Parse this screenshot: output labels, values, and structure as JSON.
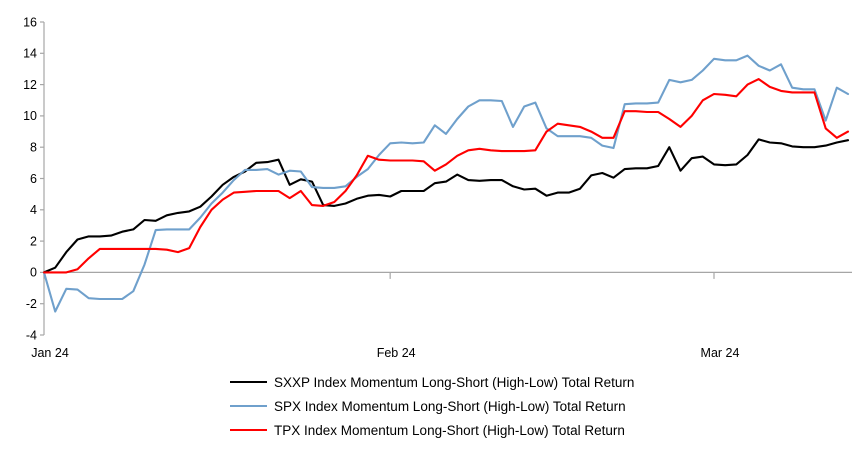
{
  "chart_data": {
    "type": "line",
    "title": "",
    "xlabel": "",
    "ylabel": "",
    "grid": "zero-line-only",
    "legend_position": "bottom-center",
    "axis_color": "#A6A6A6",
    "text_color": "#000000",
    "background_color": "#FFFFFF",
    "y_axis": {
      "min": -4,
      "max": 16,
      "step": 2,
      "tick_labels": [
        "16",
        "14",
        "12",
        "10",
        "8",
        "6",
        "4",
        "2",
        "0",
        "-2",
        "-4"
      ]
    },
    "x_axis": {
      "unit": "trading days (Jan–Mar 2024)",
      "total_days": 72,
      "ticks": [
        {
          "label": "Jan 24",
          "day": 0
        },
        {
          "label": "Feb 24",
          "day": 31
        },
        {
          "label": "Mar 24",
          "day": 60
        }
      ]
    },
    "series": [
      {
        "name": "SXXP Index Momentum Long-Short (High-Low) Total Return",
        "color": "#000000",
        "values": [
          0,
          0.3,
          1.3,
          2.1,
          2.3,
          2.3,
          2.35,
          2.6,
          2.75,
          3.35,
          3.3,
          3.65,
          3.8,
          3.9,
          4.2,
          4.85,
          5.6,
          6.1,
          6.45,
          7.0,
          7.05,
          7.2,
          5.6,
          5.95,
          5.8,
          4.3,
          4.25,
          4.4,
          4.7,
          4.9,
          4.95,
          4.85,
          5.2,
          5.2,
          5.2,
          5.7,
          5.8,
          6.25,
          5.9,
          5.85,
          5.9,
          5.9,
          5.5,
          5.3,
          5.35,
          4.9,
          5.1,
          5.1,
          5.35,
          6.2,
          6.35,
          6.05,
          6.6,
          6.65,
          6.65,
          6.8,
          8.0,
          6.5,
          7.3,
          7.4,
          6.9,
          6.85,
          6.9,
          7.5,
          8.5,
          8.3,
          8.25,
          8.05,
          8.0,
          8.0,
          8.1,
          8.3,
          8.45
        ]
      },
      {
        "name": "SPX Index Momentum Long-Short (High-Low) Total Return",
        "color": "#6FA0CC",
        "values": [
          0,
          -2.5,
          -1.05,
          -1.1,
          -1.65,
          -1.7,
          -1.7,
          -1.7,
          -1.2,
          0.5,
          2.7,
          2.75,
          2.75,
          2.75,
          3.5,
          4.4,
          5.1,
          5.9,
          6.55,
          6.55,
          6.6,
          6.25,
          6.5,
          6.45,
          5.45,
          5.4,
          5.4,
          5.5,
          6.1,
          6.6,
          7.5,
          8.25,
          8.3,
          8.25,
          8.3,
          9.4,
          8.85,
          9.8,
          10.6,
          11.0,
          11.0,
          10.95,
          9.3,
          10.6,
          10.85,
          9.2,
          8.7,
          8.7,
          8.7,
          8.6,
          8.1,
          7.95,
          10.75,
          10.8,
          10.8,
          10.85,
          12.3,
          12.15,
          12.3,
          12.9,
          13.65,
          13.55,
          13.55,
          13.85,
          13.2,
          12.9,
          13.3,
          11.8,
          11.7,
          11.7,
          9.7,
          11.8,
          11.4
        ]
      },
      {
        "name": "TPX Index Momentum Long-Short (High-Low) Total Return",
        "color": "#FF0000",
        "values": [
          0,
          0,
          0,
          0.2,
          0.9,
          1.5,
          1.5,
          1.5,
          1.5,
          1.5,
          1.5,
          1.45,
          1.3,
          1.55,
          2.9,
          4.0,
          4.65,
          5.1,
          5.15,
          5.2,
          5.2,
          5.2,
          4.75,
          5.2,
          4.3,
          4.25,
          4.5,
          5.2,
          6.2,
          7.45,
          7.2,
          7.15,
          7.15,
          7.15,
          7.1,
          6.5,
          6.9,
          7.45,
          7.8,
          7.9,
          7.8,
          7.75,
          7.75,
          7.75,
          7.8,
          9.0,
          9.5,
          9.4,
          9.3,
          9.0,
          8.6,
          8.6,
          10.3,
          10.3,
          10.25,
          10.25,
          9.8,
          9.3,
          10.0,
          11.0,
          11.4,
          11.35,
          11.25,
          12.0,
          12.35,
          11.85,
          11.6,
          11.5,
          11.5,
          11.5,
          9.2,
          8.6,
          9.0
        ]
      }
    ]
  }
}
